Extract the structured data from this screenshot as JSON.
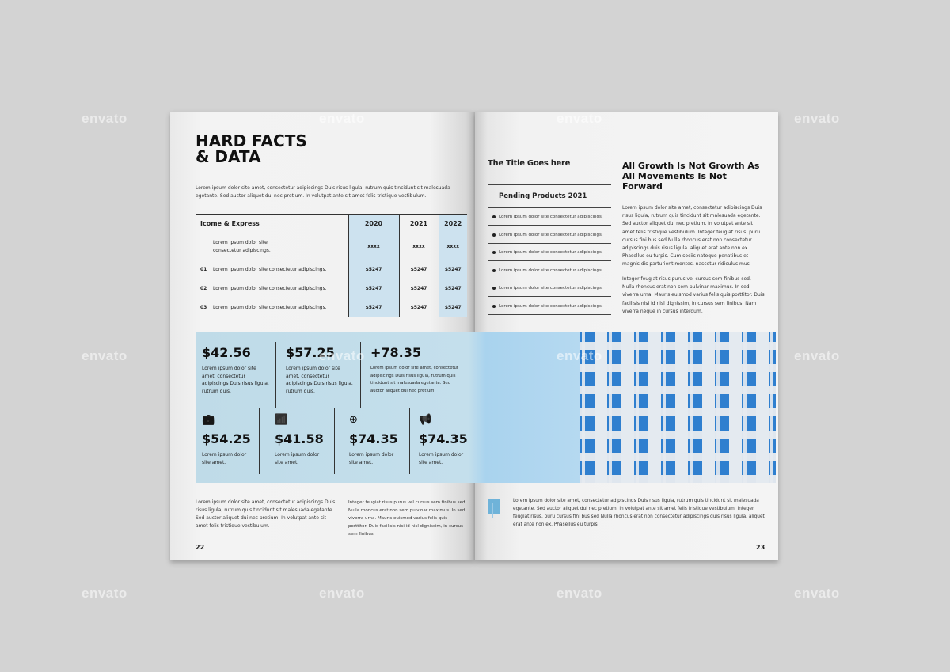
{
  "watermark": "envato",
  "left_page": {
    "title_line1": "HARD FACTS",
    "title_line2": "& DATA",
    "intro": "Lorem ipsum dolor site amet, consectetur adipiscings Duis risus ligula, rutrum quis tincidunt sit malesuada egetante. Sed auctor aliquet dui nec pretium. In volutpat ante sit amet felis tristique vestibulum.",
    "table": {
      "headers": [
        "Icome & Express",
        "2020",
        "2021",
        "2022"
      ],
      "rows": [
        {
          "num": "",
          "label": "Lorem ipsum dolor site consectetur adipiscings.",
          "values": [
            "xxxx",
            "xxxx",
            "xxxx"
          ]
        },
        {
          "num": "01",
          "label": "Lorem ipsum dolor site consectetur adipiscings.",
          "values": [
            "$5247",
            "$5247",
            "$5247"
          ]
        },
        {
          "num": "02",
          "label": "Lorem ipsum dolor site consectetur adipiscings.",
          "values": [
            "$5247",
            "$5247",
            "$5247"
          ]
        },
        {
          "num": "03",
          "label": "Lorem ipsum dolor site consectetur adipiscings.",
          "values": [
            "$5247",
            "$5247",
            "$5247"
          ]
        }
      ]
    },
    "stats_top": [
      {
        "value": "$42.56",
        "text": "Lorem ipsum dolor site amet, consectetur adipiscings Duis risus ligula, rutrum quis."
      },
      {
        "value": "$57.25",
        "text": "Lorem ipsum dolor site amet, consectetur adipiscings Duis risus ligula, rutrum quis."
      },
      {
        "value": "+78.35",
        "text": "Lorem ipsum dolor site amet, consectetur adipiscings Duis risus ligula, rutrum quis tincidunt sit malesuada egetante. Sed auctor aliquet dui nec pretium."
      }
    ],
    "stats_bottom": [
      {
        "icon": "briefcase-icon",
        "value": "$54.25",
        "text": "Lorem ipsum dolor site amet."
      },
      {
        "icon": "chart-growth-icon",
        "value": "$41.58",
        "text": "Lorem ipsum dolor site amet."
      },
      {
        "icon": "globe-icon",
        "value": "$74.35",
        "text": "Lorem ipsum dolor site amet."
      },
      {
        "icon": "megaphone-icon",
        "value": "$74.35",
        "text": "Lorem ipsum dolor site amet."
      }
    ],
    "col1": "Lorem ipsum dolor site amet, consectetur adipiscings Duis risus ligula, rutrum quis tincidunt sit malesuada egetante. Sed auctor aliquet dui nec pretium. In volutpat ante sit amet felis tristique vestibulum.",
    "col2": "Integer feugiat risus purus vel cursus sem finibus sed. Nulla rhoncus erat non sem pulvinar maximus. In sed viverra urna. Mauris euismod varius felis quis porttitor. Duis facilisis nisi id nisl dignissim, in cursus sem finibus.",
    "page_number": "22"
  },
  "right_page": {
    "side_title": "The Title Goes here",
    "list_title": "Pending Products 2021",
    "list_items": [
      "Lorem ipsum dolor site consectetur adipiscings.",
      "Lorem ipsum dolor site consectetur adipiscings.",
      "Lorem ipsum dolor site consectetur adipiscings.",
      "Lorem ipsum dolor site consectetur adipiscings.",
      "Lorem ipsum dolor site consectetur adipiscings.",
      "Lorem ipsum dolor site consectetur adipiscings."
    ],
    "heading": "All Growth Is Not Growth As All Movements Is Not Forward",
    "para1": "Lorem ipsum dolor site amet, consectetur adipiscings Duis risus ligula, rutrum quis tincidunt sit malesuada egetante. Sed auctor aliquet dui nec pretium. In volutpat ante sit amet felis tristique vestibulum. Integer feugiat risus. puru cursus fini bus sed Nulla rhoncus erat non consectetur adipiscings duis risus ligula. aliquet erat ante non ex. Phasellus eu turpis. Cum sociis natoque penatibus et magnis dis parturient montes, nascetur ridiculus mus.",
    "para2": "Integer feugiat risus purus vel cursus sem finibus sed. Nulla rhoncus erat non sem pulvinar maximus. In sed viverra urna. Mauris euismod varius felis quis porttitor. Duis facilisis nisi id nisl dignissim, in cursus sem finibus. Nam viverra neque in cursus interdum.",
    "footer_text": "Lorem ipsum dolor site amet, consectetur adipiscings Duis risus ligula, rutrum quis tincidunt sit malesuada egetante. Sed auctor aliquet dui nec pretium. In volutpat ante sit amet felis tristique vestibulum. Integer feugiat risus. puru cursus fini bus sed Nulla rhoncus erat non consectetur adipiscings duis risus ligula. aliquet erat ante non ex. Phasellus eu turpis.",
    "page_number": "23"
  },
  "colors": {
    "accent": "#c4dfec",
    "background": "#d3d3d3"
  }
}
